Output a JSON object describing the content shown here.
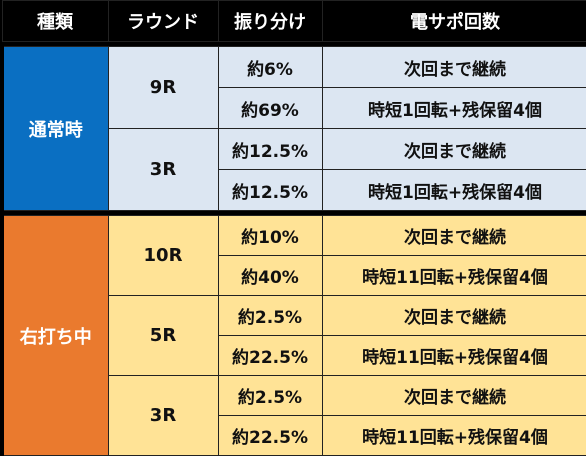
{
  "headers": [
    "種類",
    "ラウンド",
    "振り分け",
    "電サポ回数"
  ],
  "groups": [
    {
      "category": "通常時",
      "rounds": [
        {
          "round": "9R",
          "rows": [
            {
              "pct": "約6%",
              "desc": "次回まで継続"
            },
            {
              "pct": "約69%",
              "desc": "時短1回転+残保留4個"
            }
          ]
        },
        {
          "round": "3R",
          "rows": [
            {
              "pct": "約12.5%",
              "desc": "次回まで継続"
            },
            {
              "pct": "約12.5%",
              "desc": "時短1回転+残保留4個"
            }
          ]
        }
      ]
    },
    {
      "category": "右打ち中",
      "rounds": [
        {
          "round": "10R",
          "rows": [
            {
              "pct": "約10%",
              "desc": "次回まで継続"
            },
            {
              "pct": "約40%",
              "desc": "時短11回転+残保留4個"
            }
          ]
        },
        {
          "round": "5R",
          "rows": [
            {
              "pct": "約2.5%",
              "desc": "次回まで継続"
            },
            {
              "pct": "約22.5%",
              "desc": "時短11回転+残保留4個"
            }
          ]
        },
        {
          "round": "3R",
          "rows": [
            {
              "pct": "約2.5%",
              "desc": "次回まで継続"
            },
            {
              "pct": "約22.5%",
              "desc": "時短11回転+残保留4個"
            }
          ]
        }
      ]
    }
  ],
  "colors": {
    "normal": "#0a6fc2",
    "right": "#ea7a2e",
    "normal_cell": "#dce6f2",
    "right_cell": "#ffe396"
  }
}
